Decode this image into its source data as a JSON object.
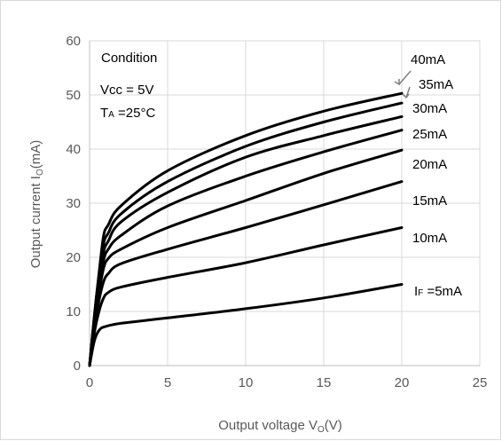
{
  "chart_data": {
    "type": "line",
    "xlabel": "Output voltage V",
    "xlabel_sub": "O",
    "xlabel_tail": "(V)",
    "ylabel": "Output current I",
    "ylabel_sub": "O",
    "ylabel_tail": "(mA)",
    "xlim": [
      0,
      25
    ],
    "ylim": [
      0,
      60
    ],
    "xticks": [
      0,
      5,
      10,
      15,
      20,
      25
    ],
    "yticks": [
      0,
      10,
      20,
      30,
      40,
      50,
      60
    ],
    "grid": true,
    "annotation": {
      "condition": "Condition",
      "vcc": "Vcc = 5V",
      "ta_main": "T",
      "ta_sub": "A",
      "ta_tail": " =25°C"
    },
    "series": [
      {
        "name": "IF =5mA",
        "label_main": "I",
        "label_sub": "F",
        "label_tail": " =5mA",
        "points": [
          [
            0,
            0
          ],
          [
            0.3,
            4.5
          ],
          [
            0.6,
            6.5
          ],
          [
            1,
            7.2
          ],
          [
            2,
            7.8
          ],
          [
            5,
            8.8
          ],
          [
            10,
            10.5
          ],
          [
            15,
            12.5
          ],
          [
            20,
            15
          ]
        ]
      },
      {
        "name": "10mA",
        "label_main": "10mA",
        "points": [
          [
            0,
            0
          ],
          [
            0.3,
            6
          ],
          [
            0.6,
            10
          ],
          [
            0.9,
            12.5
          ],
          [
            1.2,
            13.5
          ],
          [
            2,
            14.5
          ],
          [
            5,
            16.3
          ],
          [
            10,
            19
          ],
          [
            15,
            22.3
          ],
          [
            20,
            25.5
          ]
        ]
      },
      {
        "name": "15mA",
        "label_main": "15mA",
        "points": [
          [
            0,
            0
          ],
          [
            0.3,
            7
          ],
          [
            0.6,
            12
          ],
          [
            0.9,
            15.5
          ],
          [
            1.2,
            17
          ],
          [
            2,
            18.8
          ],
          [
            5,
            21.5
          ],
          [
            10,
            25.5
          ],
          [
            15,
            29.7
          ],
          [
            20,
            34
          ]
        ]
      },
      {
        "name": "20mA",
        "label_main": "20mA",
        "points": [
          [
            0,
            0
          ],
          [
            0.3,
            8
          ],
          [
            0.6,
            13.5
          ],
          [
            0.9,
            18
          ],
          [
            1.2,
            19.8
          ],
          [
            2,
            21.5
          ],
          [
            5,
            25.5
          ],
          [
            10,
            30.5
          ],
          [
            15,
            35.5
          ],
          [
            20,
            39.8
          ]
        ]
      },
      {
        "name": "25mA",
        "label_main": "25mA",
        "points": [
          [
            0,
            0
          ],
          [
            0.3,
            8
          ],
          [
            0.6,
            14.5
          ],
          [
            0.9,
            19.5
          ],
          [
            1.2,
            21.5
          ],
          [
            2,
            24
          ],
          [
            5,
            29.5
          ],
          [
            10,
            35
          ],
          [
            15,
            39.5
          ],
          [
            20,
            43.5
          ]
        ]
      },
      {
        "name": "30mA",
        "label_main": "30mA",
        "points": [
          [
            0,
            0
          ],
          [
            0.3,
            8.5
          ],
          [
            0.6,
            15.5
          ],
          [
            0.9,
            21
          ],
          [
            1.2,
            23
          ],
          [
            2,
            26.5
          ],
          [
            5,
            32
          ],
          [
            10,
            38.5
          ],
          [
            15,
            42.5
          ],
          [
            20,
            46
          ]
        ]
      },
      {
        "name": "35mA",
        "label_main": "35mA",
        "points": [
          [
            0,
            0
          ],
          [
            0.3,
            9
          ],
          [
            0.6,
            16.5
          ],
          [
            0.9,
            22.5
          ],
          [
            1.2,
            24.5
          ],
          [
            2,
            28
          ],
          [
            5,
            34
          ],
          [
            10,
            40.5
          ],
          [
            15,
            45
          ],
          [
            20,
            48.5
          ]
        ]
      },
      {
        "name": "40mA",
        "label_main": "40mA",
        "points": [
          [
            0,
            0
          ],
          [
            0.3,
            9
          ],
          [
            0.6,
            17
          ],
          [
            0.9,
            24
          ],
          [
            1.2,
            26
          ],
          [
            2,
            29.5
          ],
          [
            5,
            36
          ],
          [
            10,
            42.5
          ],
          [
            15,
            47
          ],
          [
            20,
            50.3
          ]
        ]
      }
    ]
  }
}
